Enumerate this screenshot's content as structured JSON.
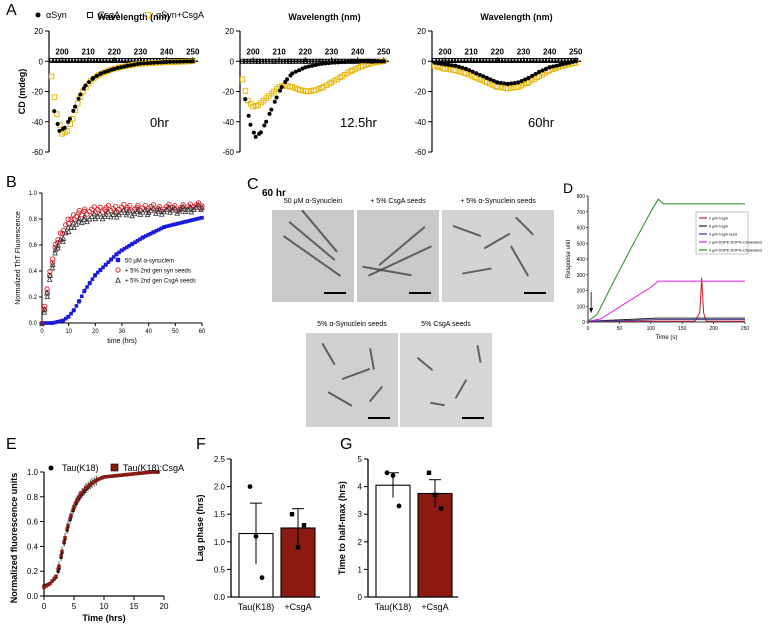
{
  "panels": {
    "A": "A",
    "B": "B",
    "C": "C",
    "D": "D",
    "E": "E",
    "F": "F",
    "G": "G"
  },
  "panel_A": {
    "legend": [
      "αSyn",
      "CsgA",
      "αSyn+CsgA"
    ],
    "xlabel": "Wavelength (nm)",
    "ylabel": "CD (mdeg)",
    "timepoints": [
      "0hr",
      "12.5hr",
      "60hr"
    ],
    "colors": {
      "asyn": "#000000",
      "csga": "#000000",
      "mix": "#e8b400"
    }
  },
  "panel_B": {
    "ylabel": "Normalized ThT Fluorescence",
    "xlabel": "time (hrs)",
    "legend": [
      "50 μM α-synuclein",
      "+ 5% 2nd gen syn seeds",
      "+ 5% 2nd gen CsgA seeds"
    ],
    "colors": {
      "a": "#1a1adc",
      "b": "#e0202a",
      "c": "#333333"
    }
  },
  "panel_C": {
    "time": "60 hr",
    "top_labels": [
      "50 μM α-Synuclein",
      "+ 5% CsgA seeds",
      "+ 5% α-Synuclein seeds"
    ],
    "bottom_labels": [
      "5% α-Synuclein seeds",
      "5% CsgA seeds"
    ]
  },
  "panel_D": {
    "ylabel": "Response unit",
    "xlabel": "Time (s)",
    "legend": [
      "2 μM CsgA",
      "8 μM CsgA",
      "3 μM CsgA seed",
      "2 μM DOPE-DOPG-Cholesterol",
      "4 μM DOPE-DOPG-Cholesterol"
    ],
    "colors": [
      "#c0202a",
      "#222222",
      "#3a3aa0",
      "#e020e0",
      "#1f8f1f"
    ]
  },
  "panel_E": {
    "ylabel": "Normalized fluorescence units",
    "xlabel": "Time (hrs)",
    "legend": [
      "Tau(K18)",
      "Tau(K18):CsgA"
    ],
    "colors": {
      "tau": "#000000",
      "mix": "#8b1a10"
    }
  },
  "panel_F": {
    "ylabel": "Lag phase (hrs)",
    "categories": [
      "Tau(K18)",
      "+CsgA"
    ]
  },
  "panel_G": {
    "ylabel": "Time to half-max (hrs)",
    "categories": [
      "Tau(K18)",
      "+CsgA"
    ]
  },
  "chart_data": [
    {
      "id": "A1",
      "type": "scatter",
      "title": "0hr",
      "xlabel": "Wavelength (nm)",
      "ylabel": "CD (mdeg)",
      "xlim": [
        195,
        252
      ],
      "ylim": [
        -60,
        20
      ],
      "xticks": [
        200,
        210,
        220,
        230,
        240,
        250
      ],
      "yticks": [
        20,
        0,
        -20,
        -40,
        -60
      ],
      "series": [
        {
          "name": "αSyn",
          "x": [
            197,
            199,
            201,
            203,
            205,
            207,
            209,
            212,
            215,
            220,
            225,
            230,
            240,
            250
          ],
          "y": [
            -33,
            -46,
            -44,
            -38,
            -30,
            -22,
            -16,
            -11,
            -8,
            -5,
            -3,
            -1.5,
            -0.5,
            0
          ]
        },
        {
          "name": "CsgA",
          "x": [
            196,
            202,
            208,
            214,
            220,
            226,
            232,
            238,
            244,
            250
          ],
          "y": [
            0.5,
            0.5,
            0.5,
            0.5,
            0.5,
            0.5,
            0.5,
            0.5,
            0.5,
            0.5
          ]
        },
        {
          "name": "αSyn+CsgA",
          "x": [
            196,
            198,
            200,
            202,
            204,
            206,
            208,
            211,
            214,
            218,
            222,
            228,
            236,
            244,
            250
          ],
          "y": [
            -10,
            -35,
            -48,
            -46,
            -38,
            -28,
            -20,
            -13,
            -9,
            -6,
            -4,
            -2,
            -1,
            -0.5,
            0
          ]
        }
      ]
    },
    {
      "id": "A2",
      "type": "scatter",
      "title": "12.5hr",
      "xlabel": "Wavelength (nm)",
      "ylabel": "CD (mdeg)",
      "xlim": [
        195,
        252
      ],
      "ylim": [
        -60,
        20
      ],
      "xticks": [
        200,
        210,
        220,
        230,
        240,
        250
      ],
      "yticks": [
        20,
        0,
        -20,
        -40,
        -60
      ],
      "series": [
        {
          "name": "αSyn",
          "x": [
            197,
            199,
            201,
            203,
            205,
            207,
            209,
            211,
            213,
            215,
            220,
            225,
            230,
            240,
            250
          ],
          "y": [
            -25,
            -42,
            -50,
            -47,
            -40,
            -32,
            -24,
            -17,
            -12,
            -8,
            -4,
            -2,
            -1,
            0,
            0
          ]
        },
        {
          "name": "CsgA",
          "x": [
            196,
            202,
            208,
            214,
            220,
            226,
            232,
            238,
            244,
            250
          ],
          "y": [
            0,
            0,
            0,
            0,
            0,
            0,
            0,
            0,
            0,
            0
          ]
        },
        {
          "name": "αSyn+CsgA",
          "x": [
            196,
            198,
            200,
            202,
            204,
            206,
            208,
            210,
            212,
            215,
            218,
            221,
            224,
            227,
            230,
            234,
            238,
            242,
            246,
            250
          ],
          "y": [
            -12,
            -26,
            -30,
            -29,
            -26,
            -23,
            -20,
            -17,
            -16,
            -17,
            -19,
            -20,
            -19,
            -17,
            -14,
            -10,
            -6,
            -3,
            -1,
            0
          ]
        }
      ]
    },
    {
      "id": "A3",
      "type": "scatter",
      "title": "60hr",
      "xlabel": "Wavelength (nm)",
      "ylabel": "CD (mdeg)",
      "xlim": [
        195,
        252
      ],
      "ylim": [
        -60,
        20
      ],
      "xticks": [
        200,
        210,
        220,
        230,
        240,
        250
      ],
      "yticks": [
        20,
        0,
        -20,
        -40,
        -60
      ],
      "series": [
        {
          "name": "αSyn",
          "x": [
            196,
            200,
            204,
            208,
            212,
            216,
            220,
            224,
            228,
            232,
            236,
            240,
            245,
            250
          ],
          "y": [
            -1,
            -2,
            -3,
            -5,
            -8,
            -11,
            -14,
            -15,
            -14,
            -11,
            -7,
            -4,
            -2,
            0
          ]
        },
        {
          "name": "CsgA",
          "x": [
            196,
            202,
            208,
            214,
            220,
            226,
            232,
            238,
            244,
            250
          ],
          "y": [
            0.5,
            0.5,
            0.5,
            0.5,
            0.5,
            0.5,
            0.5,
            0.5,
            0.5,
            0.5
          ]
        },
        {
          "name": "αSyn+CsgA",
          "x": [
            196,
            200,
            204,
            208,
            212,
            216,
            220,
            224,
            228,
            232,
            236,
            240,
            245,
            250
          ],
          "y": [
            -3,
            -5,
            -6,
            -8,
            -11,
            -14,
            -17,
            -18,
            -17,
            -14,
            -10,
            -6,
            -3,
            -1
          ]
        }
      ]
    },
    {
      "id": "B",
      "type": "scatter",
      "xlabel": "time (hrs)",
      "ylabel": "Normalized ThT Fluorescence",
      "xlim": [
        0,
        60
      ],
      "ylim": [
        0,
        1.0
      ],
      "xticks": [
        0,
        10,
        20,
        30,
        40,
        50,
        60
      ],
      "yticks": [
        0,
        0.2,
        0.4,
        0.6,
        0.8,
        1.0
      ],
      "series": [
        {
          "name": "50 μM α-synuclein",
          "x": [
            0,
            4,
            8,
            10,
            12,
            14,
            16,
            18,
            20,
            22,
            24,
            26,
            28,
            30,
            34,
            38,
            42,
            46,
            50,
            54,
            58,
            60
          ],
          "y": [
            0,
            0,
            0.02,
            0.05,
            0.1,
            0.17,
            0.25,
            0.31,
            0.37,
            0.41,
            0.45,
            0.49,
            0.53,
            0.56,
            0.61,
            0.66,
            0.7,
            0.74,
            0.76,
            0.78,
            0.8,
            0.81
          ]
        },
        {
          "name": "+ 5% 2nd gen syn seeds",
          "x": [
            0,
            1,
            2,
            3,
            4,
            5,
            6,
            8,
            10,
            12,
            14,
            16,
            20,
            24,
            28,
            32,
            36,
            40,
            44,
            48,
            52,
            56,
            60
          ],
          "y": [
            0.02,
            0.12,
            0.25,
            0.38,
            0.5,
            0.58,
            0.64,
            0.72,
            0.78,
            0.82,
            0.84,
            0.86,
            0.87,
            0.88,
            0.88,
            0.89,
            0.88,
            0.89,
            0.88,
            0.89,
            0.88,
            0.9,
            0.9
          ]
        },
        {
          "name": "+ 5% 2nd gen CsgA seeds",
          "x": [
            0,
            1,
            2,
            3,
            4,
            5,
            6,
            8,
            10,
            12,
            14,
            16,
            20,
            24,
            28,
            32,
            36,
            40,
            44,
            48,
            52,
            56,
            60
          ],
          "y": [
            0.02,
            0.1,
            0.22,
            0.35,
            0.46,
            0.54,
            0.6,
            0.66,
            0.72,
            0.76,
            0.78,
            0.8,
            0.82,
            0.83,
            0.84,
            0.85,
            0.85,
            0.86,
            0.86,
            0.87,
            0.87,
            0.88,
            0.89
          ]
        }
      ]
    },
    {
      "id": "D",
      "type": "line",
      "xlabel": "Time (s)",
      "ylabel": "Response unit",
      "xlim": [
        0,
        250
      ],
      "ylim": [
        0,
        800
      ],
      "xticks": [
        0,
        50,
        100,
        150,
        200,
        250
      ],
      "yticks": [
        0,
        100,
        200,
        300,
        400,
        500,
        600,
        700,
        800
      ],
      "series": [
        {
          "name": "2 μM CsgA",
          "x": [
            0,
            170,
            178,
            181,
            184,
            188,
            250
          ],
          "y": [
            5,
            5,
            60,
            280,
            60,
            5,
            5
          ]
        },
        {
          "name": "8 μM CsgA",
          "x": [
            0,
            30,
            110,
            140,
            250
          ],
          "y": [
            5,
            10,
            25,
            25,
            25
          ]
        },
        {
          "name": "3 μM CsgA seed",
          "x": [
            0,
            50,
            110,
            250
          ],
          "y": [
            5,
            8,
            15,
            15
          ]
        },
        {
          "name": "2 μM DOPE-DOPG-Cholesterol",
          "x": [
            0,
            20,
            60,
            100,
            112,
            120,
            250
          ],
          "y": [
            5,
            20,
            120,
            220,
            260,
            260,
            260
          ]
        },
        {
          "name": "4 μM DOPE-DOPG-Cholesterol",
          "x": [
            0,
            15,
            40,
            70,
            100,
            112,
            120,
            250
          ],
          "y": [
            5,
            50,
            250,
            480,
            700,
            780,
            750,
            750
          ]
        }
      ]
    },
    {
      "id": "E",
      "type": "scatter",
      "xlabel": "Time (hrs)",
      "ylabel": "Normalized fluorescence units",
      "xlim": [
        0,
        20
      ],
      "ylim": [
        0,
        1.0
      ],
      "xticks": [
        0,
        5,
        10,
        15,
        20
      ],
      "yticks": [
        0,
        0.2,
        0.4,
        0.6,
        0.8,
        1.0
      ],
      "series": [
        {
          "name": "Tau(K18)",
          "x": [
            0,
            1,
            2,
            2.5,
            3,
            3.5,
            4,
            4.5,
            5,
            5.5,
            6,
            7,
            8,
            9,
            10,
            12,
            14,
            16,
            18,
            19
          ],
          "y": [
            0.08,
            0.1,
            0.15,
            0.22,
            0.35,
            0.46,
            0.56,
            0.64,
            0.71,
            0.76,
            0.8,
            0.86,
            0.91,
            0.94,
            0.96,
            0.97,
            0.98,
            0.99,
            1.0,
            1.0
          ]
        },
        {
          "name": "Tau(K18):CsgA",
          "x": [
            0,
            1,
            2,
            2.5,
            3,
            3.5,
            4,
            4.5,
            5,
            5.5,
            6,
            7,
            8,
            9,
            10,
            12,
            14,
            16,
            18,
            19
          ],
          "y": [
            0.07,
            0.1,
            0.16,
            0.24,
            0.36,
            0.47,
            0.57,
            0.65,
            0.72,
            0.77,
            0.81,
            0.87,
            0.91,
            0.94,
            0.96,
            0.97,
            0.98,
            0.99,
            1.0,
            1.0
          ]
        }
      ]
    },
    {
      "id": "F",
      "type": "bar",
      "ylabel": "Lag phase (hrs)",
      "categories": [
        "Tau(K18)",
        "+CsgA"
      ],
      "values": [
        1.15,
        1.25
      ],
      "errors": [
        0.55,
        0.35
      ],
      "points": [
        [
          2.0,
          1.1,
          0.35
        ],
        [
          1.5,
          0.9,
          1.3
        ]
      ],
      "ylim": [
        0,
        2.5
      ],
      "yticks": [
        0.0,
        0.5,
        1.0,
        1.5,
        2.0,
        2.5
      ]
    },
    {
      "id": "G",
      "type": "bar",
      "ylabel": "Time to half-max (hrs)",
      "categories": [
        "Tau(K18)",
        "+CsgA"
      ],
      "values": [
        4.05,
        3.75
      ],
      "errors": [
        0.45,
        0.5
      ],
      "points": [
        [
          4.5,
          4.4,
          3.3
        ],
        [
          4.5,
          3.7,
          3.2
        ]
      ],
      "ylim": [
        0,
        5
      ],
      "yticks": [
        0,
        1,
        2,
        3,
        4,
        5
      ]
    }
  ]
}
